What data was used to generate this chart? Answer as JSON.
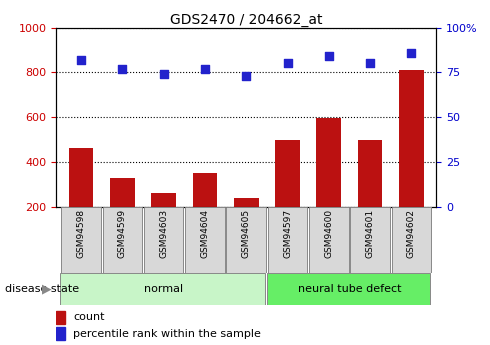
{
  "title": "GDS2470 / 204662_at",
  "samples": [
    "GSM94598",
    "GSM94599",
    "GSM94603",
    "GSM94604",
    "GSM94605",
    "GSM94597",
    "GSM94600",
    "GSM94601",
    "GSM94602"
  ],
  "counts": [
    465,
    330,
    263,
    350,
    240,
    500,
    598,
    500,
    810
  ],
  "percentiles": [
    82,
    77,
    74,
    77,
    73,
    80,
    84,
    80,
    86
  ],
  "groups": [
    {
      "label": "normal",
      "start": 0,
      "end": 5,
      "color": "#c8f5c8"
    },
    {
      "label": "neural tube defect",
      "start": 5,
      "end": 9,
      "color": "#66ee66"
    }
  ],
  "disease_state_label": "disease state",
  "ylim_left": [
    200,
    1000
  ],
  "ylim_right": [
    0,
    100
  ],
  "yticks_left": [
    200,
    400,
    600,
    800,
    1000
  ],
  "yticks_right": [
    0,
    25,
    50,
    75,
    100
  ],
  "bar_color": "#bb1111",
  "dot_color": "#2222cc",
  "grid_color": "#000000",
  "tick_label_color_left": "#cc0000",
  "tick_label_color_right": "#0000cc",
  "legend_count_label": "count",
  "legend_pct_label": "percentile rank within the sample",
  "xlabel_box_color": "#d8d8d8",
  "figsize": [
    4.9,
    3.45
  ],
  "dpi": 100
}
